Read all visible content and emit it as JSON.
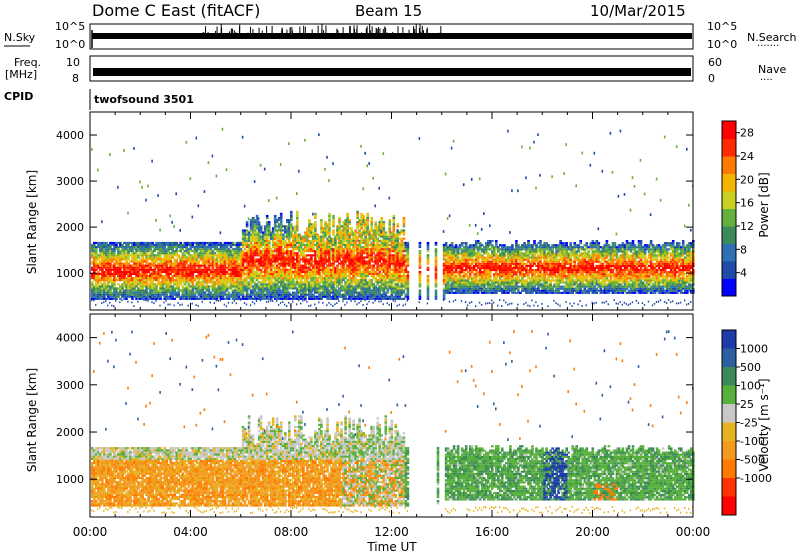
{
  "header": {
    "station": "Dome C East (fitACF)",
    "beam": "Beam 15",
    "date": "10/Mar/2015"
  },
  "strips": {
    "nsky_label": "N.Sky",
    "nsky_ticks": [
      "10^5",
      "10^0"
    ],
    "nsearch_label": "N.Search",
    "freq_label_1": "Freq.",
    "freq_label_2": "[MHz]",
    "freq_ticks": [
      "10",
      "8"
    ],
    "nave_label": "Nave",
    "nave_ticks": [
      "60",
      "0"
    ],
    "cpid_label": "CPID",
    "cpid_value": "twofsound 3501"
  },
  "colors": {
    "power": [
      "#0000ff",
      "#1e4aa8",
      "#2f6fb4",
      "#3c8a5a",
      "#66b040",
      "#c9d020",
      "#f5b400",
      "#ff7a00",
      "#ff2a00",
      "#ff0000"
    ],
    "velocity": [
      "#1c3da8",
      "#2d5fa0",
      "#3c8a5a",
      "#58b03c",
      "#c8c8c8",
      "#e6b422",
      "#f39a1e",
      "#ff7a00",
      "#ff3300",
      "#ff0000"
    ]
  },
  "chart_data": [
    {
      "type": "heatmap",
      "title": "",
      "xlabel": "Time UT",
      "ylabel": "Slant Range [km]",
      "xlim": [
        0,
        24
      ],
      "ylim": [
        200,
        4500
      ],
      "x_ticks": [
        "00:00",
        "04:00",
        "08:00",
        "12:00",
        "16:00",
        "20:00",
        "00:00"
      ],
      "y_ticks": [
        1000,
        2000,
        3000,
        4000
      ],
      "colorbar": {
        "label": "Power [dB]",
        "ticks": [
          4,
          8,
          12,
          16,
          20,
          24,
          28
        ],
        "range": [
          0,
          30
        ]
      }
    },
    {
      "type": "heatmap",
      "title": "",
      "xlabel": "Time UT",
      "ylabel": "Slant Range [km]",
      "xlim": [
        0,
        24
      ],
      "ylim": [
        200,
        4500
      ],
      "x_ticks": [
        "00:00",
        "04:00",
        "08:00",
        "12:00",
        "16:00",
        "20:00",
        "00:00"
      ],
      "y_ticks": [
        1000,
        2000,
        3000,
        4000
      ],
      "colorbar": {
        "label": "Velocity [m s⁻¹]",
        "ticks": [
          "1000",
          "500",
          "100",
          "25",
          "-25",
          "-100",
          "-500",
          "-1000"
        ]
      }
    }
  ]
}
